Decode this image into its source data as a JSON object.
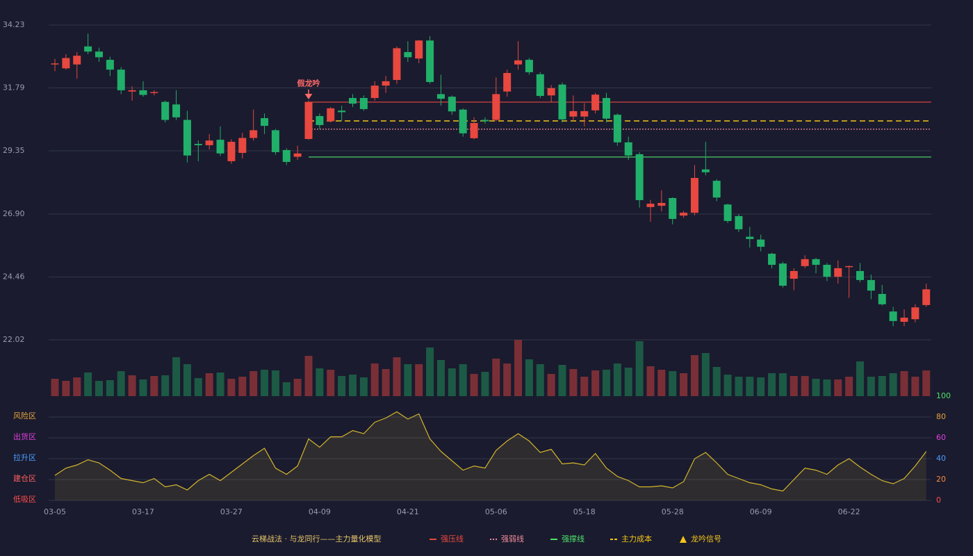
{
  "chart_data": [
    {
      "type": "candlestick",
      "categories": [
        "03-05",
        null,
        null,
        null,
        null,
        null,
        null,
        null,
        "03-17",
        null,
        null,
        null,
        null,
        null,
        null,
        null,
        "03-27",
        null,
        null,
        null,
        null,
        null,
        null,
        null,
        "04-09",
        null,
        null,
        null,
        null,
        null,
        null,
        null,
        "04-21",
        null,
        null,
        null,
        null,
        null,
        null,
        null,
        "05-06",
        null,
        null,
        null,
        null,
        null,
        null,
        null,
        "05-18",
        null,
        null,
        null,
        null,
        null,
        null,
        null,
        "05-28",
        null,
        null,
        null,
        null,
        null,
        null,
        null,
        "06-09",
        null,
        null,
        null,
        null,
        null,
        null,
        null,
        "06-22",
        null,
        null,
        null,
        null,
        null,
        null,
        null
      ],
      "open": [
        32.7,
        32.55,
        32.7,
        33.4,
        33.2,
        32.88,
        32.5,
        31.65,
        31.7,
        31.6,
        31.25,
        31.15,
        30.55,
        29.62,
        29.57,
        29.78,
        28.95,
        29.27,
        29.85,
        30.62,
        30.15,
        29.38,
        29.12,
        29.81,
        30.7,
        30.5,
        30.91,
        31.4,
        31.4,
        31.4,
        31.88,
        32.1,
        33.18,
        32.93,
        33.63,
        31.55,
        31.45,
        30.95,
        29.84,
        30.55,
        30.55,
        31.65,
        32.7,
        32.88,
        32.32,
        31.5,
        31.92,
        30.68,
        30.68,
        30.92,
        31.4,
        30.75,
        29.68,
        29.22,
        27.17,
        27.22,
        27.52,
        26.84,
        26.95,
        28.63,
        28.19,
        27.27,
        26.82,
        26.02,
        25.91,
        25.36,
        24.98,
        24.39,
        24.88,
        25.15,
        24.93,
        24.47,
        24.85,
        24.69,
        24.34,
        23.8,
        23.12,
        22.72,
        22.82,
        23.37
      ],
      "high": [
        32.92,
        33.1,
        33.18,
        33.9,
        33.35,
        33.0,
        32.6,
        31.85,
        32.05,
        31.7,
        31.3,
        31.7,
        30.9,
        29.75,
        30.0,
        30.3,
        29.8,
        30.05,
        30.95,
        30.8,
        30.2,
        29.45,
        29.55,
        31.3,
        30.8,
        31.05,
        31.1,
        31.55,
        31.5,
        32.05,
        32.25,
        33.4,
        33.6,
        33.65,
        33.8,
        32.3,
        31.5,
        31.0,
        30.65,
        30.65,
        32.2,
        32.5,
        33.6,
        32.95,
        32.4,
        31.9,
        32.0,
        31.5,
        31.2,
        31.6,
        31.6,
        30.8,
        29.9,
        29.3,
        27.45,
        27.82,
        27.55,
        27.02,
        28.8,
        29.7,
        28.25,
        27.3,
        26.9,
        26.4,
        26.1,
        25.4,
        25.05,
        24.8,
        25.3,
        25.2,
        25.0,
        25.1,
        24.9,
        25.0,
        24.55,
        24.15,
        23.3,
        23.2,
        23.4,
        24.2
      ],
      "low": [
        32.44,
        32.5,
        32.15,
        33.1,
        32.8,
        32.25,
        31.55,
        31.3,
        31.45,
        31.5,
        30.45,
        30.55,
        28.9,
        28.95,
        29.4,
        29.15,
        28.85,
        29.05,
        29.75,
        30.0,
        29.2,
        28.8,
        29.0,
        29.78,
        30.2,
        30.45,
        30.5,
        31.05,
        30.9,
        31.3,
        31.6,
        31.95,
        32.8,
        32.75,
        31.95,
        31.1,
        30.75,
        29.9,
        29.8,
        30.4,
        30.5,
        31.45,
        32.5,
        32.3,
        31.4,
        31.25,
        30.45,
        30.5,
        30.3,
        30.8,
        30.45,
        29.55,
        29.0,
        27.15,
        26.6,
        27.0,
        26.5,
        26.75,
        26.85,
        28.4,
        27.4,
        26.55,
        26.2,
        25.6,
        25.45,
        24.8,
        24.05,
        23.95,
        24.8,
        24.6,
        24.3,
        24.2,
        23.65,
        24.25,
        23.6,
        23.35,
        22.55,
        22.55,
        22.7,
        23.3
      ],
      "close": [
        32.74,
        32.95,
        33.04,
        33.2,
        32.98,
        32.5,
        31.7,
        31.7,
        31.52,
        31.63,
        30.55,
        30.65,
        29.17,
        29.57,
        29.75,
        29.25,
        29.7,
        29.85,
        30.15,
        30.32,
        29.3,
        28.92,
        29.25,
        31.25,
        30.35,
        31.0,
        30.85,
        31.18,
        30.97,
        31.88,
        32.05,
        33.33,
        32.98,
        33.63,
        32.02,
        31.37,
        30.88,
        30.03,
        30.43,
        30.5,
        31.55,
        32.37,
        32.86,
        32.4,
        31.48,
        31.78,
        30.57,
        30.89,
        30.89,
        31.53,
        30.6,
        29.68,
        29.17,
        27.44,
        27.3,
        27.33,
        26.71,
        26.95,
        28.3,
        28.52,
        27.54,
        26.63,
        26.31,
        25.93,
        25.63,
        24.93,
        24.12,
        24.69,
        25.15,
        24.93,
        24.47,
        24.8,
        24.88,
        24.34,
        23.93,
        23.4,
        22.75,
        22.88,
        23.28,
        23.98
      ],
      "up_color": "#e8483f",
      "down_color": "#21b06a",
      "ylim": [
        22.02,
        34.23
      ],
      "yticks": [
        34.23,
        31.79,
        29.35,
        {
          "value": 26.9,
          "label": "26.90"
        },
        24.46,
        22.02
      ],
      "grid": true,
      "title": "云梯战法 · 与龙同行——主力量化模型",
      "levels": [
        {
          "name": "强压线",
          "value": 31.24,
          "color": "#e8483f",
          "style": "solid"
        },
        {
          "name": "强弱线",
          "value": 30.19,
          "color": "#f08a9a",
          "style": "dotted"
        },
        {
          "name": "强撑线",
          "value": 29.11,
          "color": "#4ee06a",
          "style": "solid"
        },
        {
          "name": "主力成本",
          "value": 30.51,
          "color": "#f5c518",
          "style": "dashed"
        }
      ],
      "signals": {
        "name": "龙吟信号",
        "color": "#f5c518",
        "points": [
          {
            "index": 23,
            "label": "假龙吟",
            "color": "#ff6a6a"
          }
        ]
      }
    },
    {
      "type": "bar",
      "values": [
        25,
        22,
        27,
        34,
        22,
        23,
        36,
        30,
        24,
        29,
        30,
        56,
        46,
        26,
        33,
        34,
        25,
        28,
        36,
        38,
        37,
        20,
        25,
        58,
        40,
        38,
        29,
        31,
        27,
        47,
        39,
        56,
        46,
        46,
        70,
        52,
        40,
        46,
        32,
        35,
        54,
        47,
        81,
        53,
        46,
        32,
        45,
        39,
        28,
        37,
        38,
        47,
        41,
        79,
        43,
        38,
        36,
        33,
        59,
        62,
        42,
        31,
        28,
        28,
        27,
        33,
        33,
        29,
        29,
        25,
        24,
        24,
        28,
        50,
        28,
        29,
        33,
        36,
        28,
        37
      ],
      "up_color": "#7a2f36",
      "down_color": "#1c5a45",
      "ylim": [
        0,
        81
      ]
    },
    {
      "type": "line",
      "values": [
        24,
        31,
        34,
        39,
        36,
        29,
        21,
        19,
        17,
        21,
        13,
        15,
        10,
        19,
        25,
        19,
        27,
        35,
        43,
        50,
        31,
        25,
        33,
        59,
        51,
        61,
        61,
        67,
        64,
        75,
        79,
        85,
        78,
        83,
        59,
        47,
        38,
        29,
        33,
        31,
        48,
        57,
        64,
        57,
        46,
        49,
        35,
        36,
        34,
        45,
        31,
        23,
        19,
        13,
        13,
        14,
        12,
        18,
        40,
        46,
        36,
        25,
        21,
        17,
        15,
        11,
        9,
        20,
        31,
        29,
        25,
        34,
        40,
        32,
        25,
        19,
        16,
        21,
        33,
        47
      ],
      "color": "#d4b62c",
      "ylim": [
        0,
        100
      ],
      "yticks": [
        {
          "value": 80,
          "label": "风险区"
        },
        {
          "value": 60,
          "label": "出货区"
        },
        {
          "value": 40,
          "label": "拉升区"
        },
        {
          "value": 20,
          "label": "建仓区"
        },
        {
          "value": 0,
          "label": "低吸区"
        }
      ],
      "ytick_colors": [
        "#e8a33c",
        "#e040e0",
        "#4a9eff",
        "#ff6060",
        "#ff4d4d"
      ],
      "y2lim": [
        0,
        100
      ],
      "y2ticks": [
        0,
        20,
        40,
        60,
        80,
        100
      ],
      "y2tick_colors": [
        "#ff4d4d",
        "#ff8a3c",
        "#4a9eff",
        "#e040e0",
        "#e8a33c",
        "#4ee06a"
      ]
    }
  ]
}
